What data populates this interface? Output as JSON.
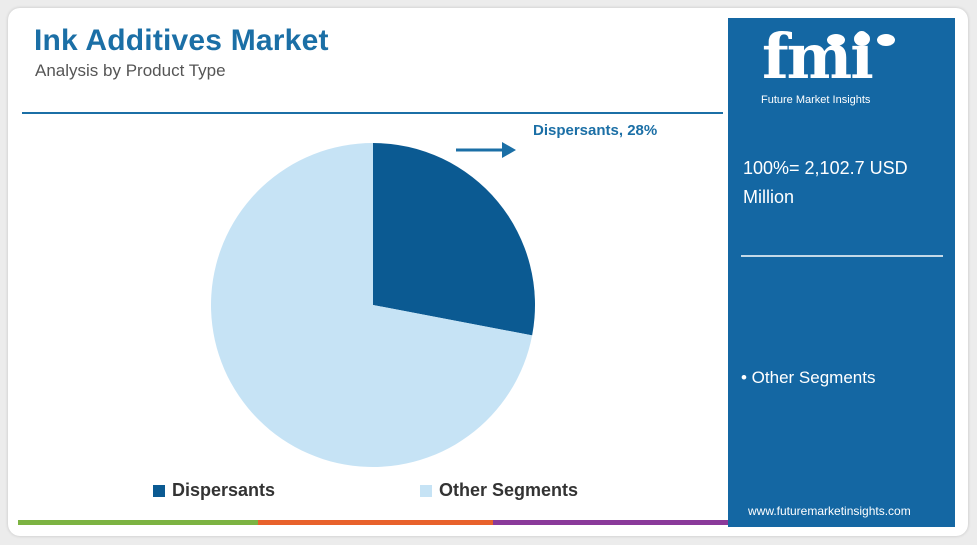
{
  "header": {
    "title": "Ink Additives Market",
    "subtitle": "Analysis by Product Type"
  },
  "chart_data": {
    "type": "pie",
    "title": "Ink Additives Market",
    "subtitle": "Analysis by Product Type",
    "categories": [
      "Dispersants",
      "Other Segments"
    ],
    "values": [
      28,
      72
    ],
    "unit": "%",
    "total_label": "100%= 2,102.7 USD Million",
    "legend_position": "bottom",
    "colors": [
      "#0b5a92",
      "#c6e3f5"
    ],
    "callout": "Dispersants, 28%"
  },
  "legend": {
    "items": [
      {
        "label": "Dispersants",
        "color": "#0b5a92"
      },
      {
        "label": "Other Segments",
        "color": "#c6e3f5"
      }
    ]
  },
  "side_panel": {
    "logo_text": "fmi",
    "logo_tagline": "Future Market Insights",
    "total_value": "100%= 2,102.7 USD Million",
    "segment_label": "• Other Segments",
    "url": "www.futuremarketinsights.com",
    "background_color": "#1467a3"
  },
  "icons": [
    "right-arrow-icon"
  ],
  "colors": {
    "accent": "#1b6fa6",
    "stripe": [
      "#7cb342",
      "#e8622c",
      "#8a3a9a"
    ]
  }
}
